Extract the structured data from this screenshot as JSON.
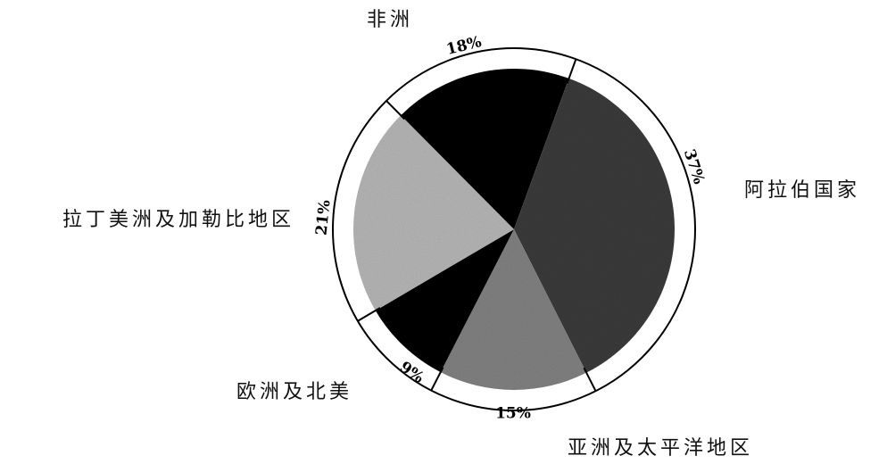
{
  "chart_data": {
    "type": "pie",
    "title": "",
    "categories": [
      "阿拉伯国家",
      "亚洲及太平洋地区",
      "欧洲及北美",
      "拉丁美洲及加勒比地区",
      "非洲"
    ],
    "values": [
      37,
      15,
      9,
      21,
      18
    ],
    "value_labels": [
      "37%",
      "15%",
      "9%",
      "21%",
      "18%"
    ],
    "colors": [
      "#3a3a3a",
      "#808080",
      "#000000",
      "#b4b4b4",
      "#000000"
    ],
    "start_angle_deg": 20,
    "direction": "clockwise",
    "legend": "none"
  }
}
